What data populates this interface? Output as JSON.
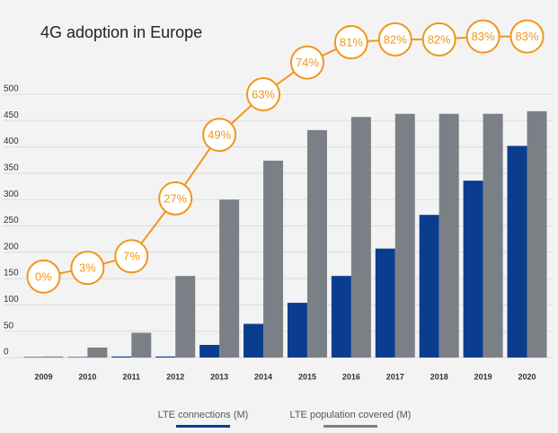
{
  "chart_data": {
    "type": "bar",
    "title": "4G adoption in Europe",
    "categories": [
      "2009",
      "2010",
      "2011",
      "2012",
      "2013",
      "2014",
      "2015",
      "2016",
      "2017",
      "2018",
      "2019",
      "2020"
    ],
    "series": [
      {
        "name": "LTE connections (M)",
        "color": "#0b3d8f",
        "values": [
          1,
          1,
          2,
          2,
          24,
          64,
          104,
          155,
          207,
          271,
          336,
          402
        ]
      },
      {
        "name": "LTE population covered (M)",
        "color": "#7b8087",
        "values": [
          2,
          19,
          47,
          155,
          300,
          374,
          432,
          457,
          463,
          463,
          463,
          468
        ]
      },
      {
        "type": "line",
        "color": "#f0961c",
        "axis": "y2",
        "values": [
          0,
          3,
          7,
          27,
          49,
          63,
          74,
          81,
          82,
          82,
          83,
          83
        ],
        "value_labels": [
          "0%",
          "3%",
          "7%",
          "27%",
          "49%",
          "63%",
          "74%",
          "81%",
          "82%",
          "82%",
          "83%",
          "83%"
        ]
      }
    ],
    "ylim": [
      0,
      500
    ],
    "yticks": [
      0,
      50,
      100,
      150,
      200,
      250,
      300,
      350,
      400,
      450,
      500
    ],
    "y2lim": [
      -28,
      63
    ],
    "grid": true
  }
}
